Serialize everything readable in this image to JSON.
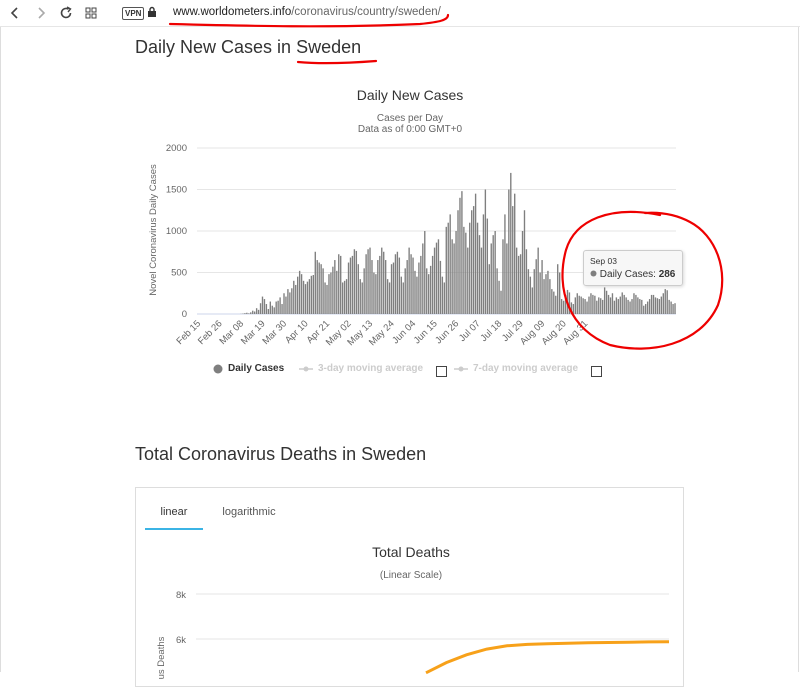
{
  "browser": {
    "url_host": "www.worldometers.info",
    "url_path": "/coronavirus/country/sweden/",
    "vpn_label": "VPN"
  },
  "section1": {
    "heading_prefix": "Daily New Cases in ",
    "heading_country": "Sweden"
  },
  "daily_chart": {
    "title": "Daily New Cases",
    "subtitle_line1": "Cases per Day",
    "subtitle_line2": "Data as of 0:00 GMT+0",
    "legend": {
      "daily": "Daily Cases",
      "avg3": "3-day moving average",
      "avg7": "7-day moving average"
    },
    "tooltip": {
      "date": "Sep 03",
      "label": "Daily Cases: ",
      "value": "286"
    }
  },
  "section2": {
    "heading": "Total Coronavirus Deaths in Sweden"
  },
  "deaths_chart": {
    "tabs": [
      "linear",
      "logarithmic"
    ],
    "active_tab": "linear",
    "title": "Total Deaths",
    "subtitle": "(Linear Scale)",
    "ylabel": "us Deaths",
    "line_color": "#f7a11a"
  },
  "chart_data": [
    {
      "type": "bar",
      "title": "Daily New Cases",
      "subtitle": "Cases per Day",
      "xlabel": "",
      "ylabel": "Novel Coronavirus Daily Cases",
      "ylim": [
        0,
        2000
      ],
      "yticks": [
        0,
        500,
        1000,
        1500,
        2000
      ],
      "color": "#7f7f7f",
      "grid": true,
      "legend_position": "bottom",
      "xtick_labels": [
        "Feb 15",
        "Feb 26",
        "Mar 08",
        "Mar 19",
        "Mar 30",
        "Apr 10",
        "Apr 21",
        "May 02",
        "May 13",
        "May 24",
        "Jun 04",
        "Jun 15",
        "Jun 26",
        "Jul 07",
        "Jul 18",
        "Jul 29",
        "Aug 09",
        "Aug 20",
        "Aug 31"
      ],
      "series": [
        {
          "name": "Daily Cases",
          "values": [
            0,
            0,
            0,
            0,
            0,
            0,
            0,
            0,
            0,
            0,
            0,
            0,
            0,
            0,
            0,
            0,
            0,
            0,
            0,
            0,
            0,
            0,
            2,
            5,
            10,
            15,
            8,
            20,
            40,
            30,
            70,
            50,
            130,
            210,
            180,
            120,
            60,
            150,
            100,
            80,
            150,
            160,
            200,
            120,
            250,
            210,
            300,
            260,
            310,
            400,
            350,
            450,
            520,
            480,
            400,
            360,
            390,
            420,
            460,
            470,
            750,
            650,
            620,
            600,
            550,
            380,
            350,
            480,
            500,
            570,
            650,
            520,
            720,
            700,
            380,
            400,
            420,
            620,
            680,
            700,
            780,
            760,
            600,
            420,
            380,
            550,
            720,
            780,
            800,
            650,
            500,
            480,
            650,
            700,
            800,
            750,
            650,
            420,
            380,
            600,
            620,
            720,
            750,
            680,
            450,
            380,
            550,
            650,
            800,
            720,
            680,
            520,
            450,
            620,
            700,
            850,
            1000,
            550,
            480,
            580,
            700,
            800,
            860,
            900,
            640,
            450,
            380,
            1050,
            1100,
            1200,
            900,
            850,
            1000,
            1250,
            1400,
            1480,
            1050,
            980,
            800,
            1100,
            1250,
            1300,
            1450,
            1100,
            950,
            800,
            1200,
            1500,
            1150,
            600,
            850,
            950,
            1000,
            550,
            400,
            280,
            900,
            1200,
            850,
            1500,
            1700,
            1300,
            1450,
            800,
            700,
            720,
            1000,
            1250,
            780,
            540,
            450,
            320,
            540,
            660,
            800,
            500,
            650,
            420,
            480,
            520,
            420,
            300,
            270,
            220,
            600,
            500,
            180,
            160,
            230,
            290,
            260,
            140,
            120,
            200,
            250,
            220,
            210,
            190,
            180,
            150,
            210,
            250,
            230,
            220,
            160,
            200,
            190,
            170,
            320,
            280,
            230,
            200,
            250,
            160,
            200,
            180,
            210,
            260,
            230,
            200,
            170,
            150,
            180,
            250,
            230,
            200,
            180,
            170,
            100,
            120,
            150,
            180,
            230,
            230,
            200,
            190,
            180,
            210,
            250,
            300,
            286,
            170,
            150,
            120,
            130
          ]
        },
        {
          "name": "3-day moving average",
          "values": []
        },
        {
          "name": "7-day moving average",
          "values": []
        }
      ],
      "annotations": [
        {
          "date": "Sep 03",
          "text": "Daily Cases: 286"
        }
      ]
    },
    {
      "type": "line",
      "title": "Total Deaths",
      "subtitle": "(Linear Scale)",
      "ylabel": "us Deaths",
      "ylim": [
        4000,
        8000
      ],
      "yticks_visible": [
        "8k",
        "6k"
      ],
      "color": "#f7a11a",
      "series": [
        {
          "values": [
            4500,
            4950,
            5300,
            5550,
            5700,
            5760,
            5790,
            5810,
            5830,
            5845,
            5860,
            5870,
            5880
          ]
        }
      ]
    }
  ]
}
